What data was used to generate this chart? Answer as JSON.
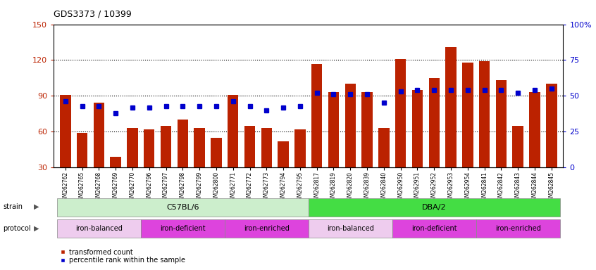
{
  "title": "GDS3373 / 10399",
  "samples": [
    "GSM262762",
    "GSM262765",
    "GSM262768",
    "GSM262769",
    "GSM262770",
    "GSM262796",
    "GSM262797",
    "GSM262798",
    "GSM262799",
    "GSM262800",
    "GSM262771",
    "GSM262772",
    "GSM262773",
    "GSM262794",
    "GSM262795",
    "GSM262817",
    "GSM262819",
    "GSM262820",
    "GSM262839",
    "GSM262840",
    "GSM262950",
    "GSM262951",
    "GSM262952",
    "GSM262953",
    "GSM262954",
    "GSM262841",
    "GSM262842",
    "GSM262843",
    "GSM262844",
    "GSM262845"
  ],
  "bar_values": [
    91,
    59,
    84,
    39,
    63,
    62,
    65,
    70,
    63,
    55,
    91,
    65,
    63,
    52,
    62,
    117,
    93,
    100,
    93,
    63,
    121,
    95,
    105,
    131,
    118,
    119,
    103,
    65,
    93,
    100
  ],
  "blue_pct": [
    46,
    43,
    43,
    38,
    42,
    42,
    43,
    43,
    43,
    43,
    46,
    43,
    40,
    42,
    43,
    52,
    51,
    51,
    51,
    45,
    53,
    54,
    54,
    54,
    54,
    54,
    54,
    52,
    54,
    55
  ],
  "ylim_left": [
    30,
    150
  ],
  "ylim_right": [
    0,
    100
  ],
  "yticks_left": [
    30,
    60,
    90,
    120,
    150
  ],
  "yticks_right": [
    0,
    25,
    50,
    75,
    100
  ],
  "bar_color": "#bb2200",
  "blue_color": "#0000cc",
  "strain_groups": [
    {
      "label": "C57BL/6",
      "start": 0,
      "end": 15,
      "color": "#cceecc"
    },
    {
      "label": "DBA/2",
      "start": 15,
      "end": 30,
      "color": "#44dd44"
    }
  ],
  "protocol_groups": [
    {
      "label": "iron-balanced",
      "start": 0,
      "end": 5,
      "color": "#eeccee"
    },
    {
      "label": "iron-deficient",
      "start": 5,
      "end": 10,
      "color": "#dd44dd"
    },
    {
      "label": "iron-enriched",
      "start": 10,
      "end": 15,
      "color": "#dd44dd"
    },
    {
      "label": "iron-balanced",
      "start": 15,
      "end": 20,
      "color": "#eeccee"
    },
    {
      "label": "iron-deficient",
      "start": 20,
      "end": 25,
      "color": "#dd44dd"
    },
    {
      "label": "iron-enriched",
      "start": 25,
      "end": 30,
      "color": "#dd44dd"
    }
  ]
}
